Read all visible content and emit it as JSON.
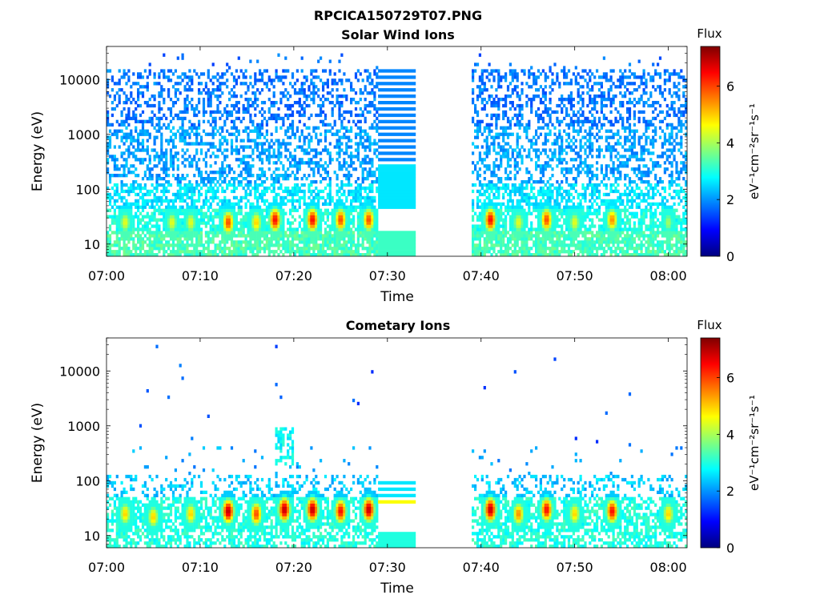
{
  "figure": {
    "title": "RPCICA150729T07.PNG"
  },
  "colorbar": {
    "title": "Flux",
    "label": "eV⁻¹cm⁻²sr⁻¹s⁻¹",
    "range": [
      0,
      7.4
    ],
    "ticks": [
      "0",
      "2",
      "4",
      "6"
    ],
    "colors": [
      "#00007f",
      "#0000ff",
      "#007fff",
      "#00ffff",
      "#7fff7f",
      "#ffff00",
      "#ff7f00",
      "#ff0000",
      "#7f0000"
    ]
  },
  "chart_data": [
    {
      "type": "heatmap",
      "title": "Solar Wind Ions",
      "xlabel": "Time",
      "ylabel": "Energy (eV)",
      "yscale": "log",
      "xlim": [
        "07:00",
        "08:02"
      ],
      "ylim": [
        6,
        40000
      ],
      "xticks": [
        "07:00",
        "07:10",
        "07:20",
        "07:30",
        "07:40",
        "07:50",
        "08:00"
      ],
      "yticks": [
        "10",
        "100",
        "1000",
        "10000"
      ],
      "data_gaps": [
        [
          "07:33",
          "07:39"
        ]
      ],
      "uniform_segments": [
        [
          "07:29",
          "07:33"
        ]
      ],
      "low_energy_bursts": [
        {
          "time": "07:02",
          "energy_eV": 25,
          "flux": 4.5
        },
        {
          "time": "07:07",
          "energy_eV": 25,
          "flux": 4.5
        },
        {
          "time": "07:09",
          "energy_eV": 25,
          "flux": 4.5
        },
        {
          "time": "07:13",
          "energy_eV": 25,
          "flux": 6.0
        },
        {
          "time": "07:16",
          "energy_eV": 25,
          "flux": 5.0
        },
        {
          "time": "07:18",
          "energy_eV": 28,
          "flux": 6.5
        },
        {
          "time": "07:22",
          "energy_eV": 28,
          "flux": 6.5
        },
        {
          "time": "07:25",
          "energy_eV": 28,
          "flux": 6.0
        },
        {
          "time": "07:28",
          "energy_eV": 28,
          "flux": 6.0
        },
        {
          "time": "07:41",
          "energy_eV": 28,
          "flux": 6.5
        },
        {
          "time": "07:44",
          "energy_eV": 25,
          "flux": 4.5
        },
        {
          "time": "07:47",
          "energy_eV": 28,
          "flux": 6.0
        },
        {
          "time": "07:50",
          "energy_eV": 25,
          "flux": 4.5
        },
        {
          "time": "07:54",
          "energy_eV": 28,
          "flux": 5.5
        },
        {
          "time": "08:00",
          "energy_eV": 25,
          "flux": 4.0
        }
      ],
      "background": {
        "high_energy_flux": 2.0,
        "low_energy_flux": 3.5
      }
    },
    {
      "type": "heatmap",
      "title": "Cometary Ions",
      "xlabel": "Time",
      "ylabel": "Energy (eV)",
      "yscale": "log",
      "xlim": [
        "07:00",
        "08:02"
      ],
      "ylim": [
        6,
        40000
      ],
      "xticks": [
        "07:00",
        "07:10",
        "07:20",
        "07:30",
        "07:40",
        "07:50",
        "08:00"
      ],
      "yticks": [
        "10",
        "100",
        "1000",
        "10000"
      ],
      "data_gaps": [
        [
          "07:33",
          "07:39"
        ]
      ],
      "uniform_segments": [
        [
          "07:29",
          "07:33"
        ]
      ],
      "low_energy_bursts": [
        {
          "time": "07:02",
          "energy_eV": 25,
          "flux": 5.0
        },
        {
          "time": "07:05",
          "energy_eV": 22,
          "flux": 5.0
        },
        {
          "time": "07:09",
          "energy_eV": 25,
          "flux": 5.0
        },
        {
          "time": "07:13",
          "energy_eV": 28,
          "flux": 7.0
        },
        {
          "time": "07:16",
          "energy_eV": 25,
          "flux": 6.0
        },
        {
          "time": "07:19",
          "energy_eV": 30,
          "flux": 7.0
        },
        {
          "time": "07:22",
          "energy_eV": 30,
          "flux": 7.0
        },
        {
          "time": "07:25",
          "energy_eV": 28,
          "flux": 6.5
        },
        {
          "time": "07:28",
          "energy_eV": 30,
          "flux": 7.0
        },
        {
          "time": "07:41",
          "energy_eV": 30,
          "flux": 7.0
        },
        {
          "time": "07:44",
          "energy_eV": 25,
          "flux": 5.5
        },
        {
          "time": "07:47",
          "energy_eV": 30,
          "flux": 6.5
        },
        {
          "time": "07:50",
          "energy_eV": 25,
          "flux": 5.0
        },
        {
          "time": "07:54",
          "energy_eV": 28,
          "flux": 6.5
        },
        {
          "time": "08:00",
          "energy_eV": 25,
          "flux": 5.0
        }
      ],
      "feature": {
        "time": "07:19",
        "energy_eV": [
          200,
          1000
        ],
        "flux": 2.8
      },
      "background": {
        "high_energy_flux": 2.0,
        "low_energy_flux": 3.0
      }
    }
  ]
}
